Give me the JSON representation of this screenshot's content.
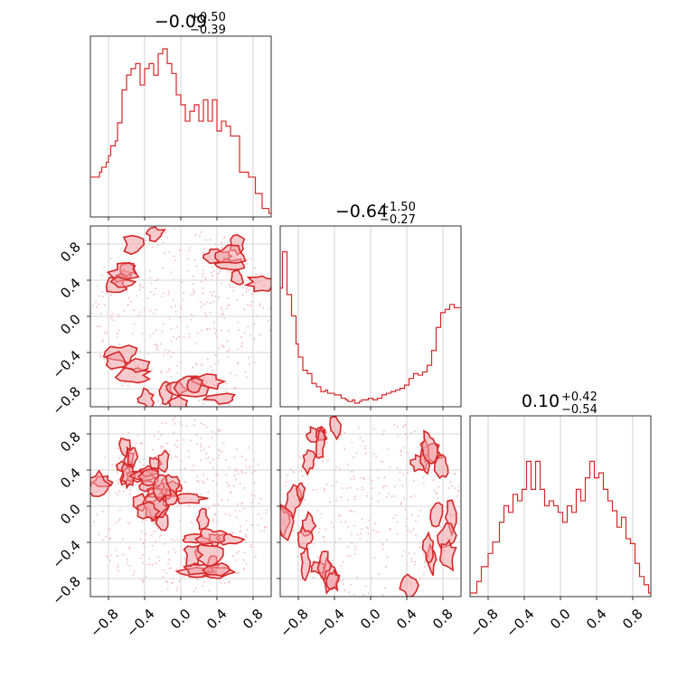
{
  "chart_data": [
    {
      "type": "histogram",
      "panel": "1d-param-1",
      "title": {
        "median": "−0.09",
        "plus": "+0.50",
        "minus": "−0.39"
      },
      "bins_from": -1.0,
      "bins_to": 1.0,
      "values": [
        0.22,
        0.22,
        0.22,
        0.22,
        0.25,
        0.28,
        0.28,
        0.31,
        0.35,
        0.41,
        0.41,
        0.44,
        0.55,
        0.55,
        0.75,
        0.75,
        0.84,
        0.84,
        0.88,
        0.88,
        0.91,
        0.91,
        0.78,
        0.78,
        0.88,
        0.88,
        0.91,
        0.91,
        0.84,
        0.84,
        0.97,
        0.97,
        1.0,
        1.0,
        0.91,
        0.91,
        0.85,
        0.85,
        0.72,
        0.72,
        0.66,
        0.66,
        0.56,
        0.56,
        0.62,
        0.62,
        0.66,
        0.66,
        0.56,
        0.56,
        0.69,
        0.69,
        0.56,
        0.56,
        0.69,
        0.69,
        0.5,
        0.5,
        0.56,
        0.56,
        0.53,
        0.53,
        0.47,
        0.47,
        0.47,
        0.47,
        0.25,
        0.25,
        0.25,
        0.25,
        0.22,
        0.22,
        0.22,
        0.12,
        0.12,
        0.12,
        0.03,
        0.03,
        0.03,
        0.0
      ],
      "color": "#d62728",
      "xticks": [
        "−0.8",
        "−0.4",
        "0.0",
        "0.4",
        "0.8"
      ],
      "grid": true
    },
    {
      "type": "histogram",
      "panel": "1d-param-2",
      "title": {
        "median": "−0.64",
        "plus": "+1.50",
        "minus": "−0.27"
      },
      "bins_from": -1.0,
      "bins_to": 1.0,
      "values": [
        0.7,
        0.92,
        0.92,
        0.66,
        0.66,
        0.53,
        0.53,
        0.36,
        0.28,
        0.28,
        0.2,
        0.2,
        0.18,
        0.18,
        0.12,
        0.12,
        0.1,
        0.1,
        0.07,
        0.07,
        0.08,
        0.06,
        0.06,
        0.06,
        0.05,
        0.05,
        0.05,
        0.03,
        0.03,
        0.02,
        0.01,
        0.01,
        0.02,
        0.0,
        0.0,
        0.01,
        0.02,
        0.02,
        0.02,
        0.03,
        0.03,
        0.02,
        0.02,
        0.03,
        0.03,
        0.05,
        0.05,
        0.06,
        0.06,
        0.07,
        0.07,
        0.08,
        0.08,
        0.09,
        0.09,
        0.11,
        0.11,
        0.15,
        0.15,
        0.18,
        0.18,
        0.17,
        0.17,
        0.19,
        0.19,
        0.23,
        0.23,
        0.32,
        0.32,
        0.46,
        0.46,
        0.55,
        0.55,
        0.57,
        0.57,
        0.6,
        0.6,
        0.58,
        0.58,
        0.58
      ],
      "color": "#d62728",
      "xticks": [
        "−0.8",
        "−0.4",
        "0.0",
        "0.4",
        "0.8"
      ],
      "grid": true
    },
    {
      "type": "histogram",
      "panel": "1d-param-3",
      "title": {
        "median": "0.10",
        "plus": "+0.42",
        "minus": "−0.54"
      },
      "bins_from": -1.0,
      "bins_to": 1.0,
      "values": [
        0.0,
        0.0,
        0.0,
        0.07,
        0.07,
        0.16,
        0.16,
        0.16,
        0.24,
        0.24,
        0.31,
        0.31,
        0.31,
        0.43,
        0.43,
        0.53,
        0.53,
        0.49,
        0.49,
        0.6,
        0.6,
        0.56,
        0.56,
        0.63,
        0.63,
        0.8,
        0.8,
        0.63,
        0.63,
        0.8,
        0.8,
        0.63,
        0.63,
        0.53,
        0.53,
        0.56,
        0.56,
        0.53,
        0.53,
        0.49,
        0.49,
        0.43,
        0.43,
        0.53,
        0.53,
        0.49,
        0.49,
        0.63,
        0.63,
        0.56,
        0.56,
        0.7,
        0.7,
        0.8,
        0.8,
        0.7,
        0.7,
        0.73,
        0.73,
        0.63,
        0.63,
        0.56,
        0.56,
        0.5,
        0.5,
        0.4,
        0.4,
        0.46,
        0.46,
        0.33,
        0.33,
        0.3,
        0.3,
        0.18,
        0.18,
        0.1,
        0.1,
        0.05,
        0.05,
        0.0
      ],
      "color": "#d62728",
      "xticks": [
        "−0.8",
        "−0.4",
        "0.0",
        "0.4",
        "0.8"
      ],
      "grid": true
    },
    {
      "type": "contour",
      "panel": "2d-param-1-vs-param-2",
      "description_of_density": "ring",
      "x_range": [
        -1.0,
        1.0
      ],
      "y_range": [
        -1.0,
        1.0
      ],
      "yticks": [
        "−0.8",
        "−0.4",
        "0.0",
        "0.4",
        "0.8"
      ],
      "color": "#d62728",
      "fill": "#f0a0a6",
      "grid": true
    },
    {
      "type": "contour",
      "panel": "2d-param-1-vs-param-3",
      "x_range": [
        -1.0,
        1.0
      ],
      "y_range": [
        -1.0,
        1.0
      ],
      "xticks": [
        "−0.8",
        "−0.4",
        "0.0",
        "0.4",
        "0.8"
      ],
      "yticks": [
        "−0.8",
        "−0.4",
        "0.0",
        "0.4",
        "0.8"
      ],
      "color": "#d62728",
      "fill": "#f0a0a6",
      "grid": true
    },
    {
      "type": "contour",
      "panel": "2d-param-2-vs-param-3",
      "x_range": [
        -1.0,
        1.0
      ],
      "y_range": [
        -1.0,
        1.0
      ],
      "xticks": [
        "−0.8",
        "−0.4",
        "0.0",
        "0.4",
        "0.8"
      ],
      "color": "#d62728",
      "fill": "#f0a0a6",
      "grid": true
    }
  ]
}
